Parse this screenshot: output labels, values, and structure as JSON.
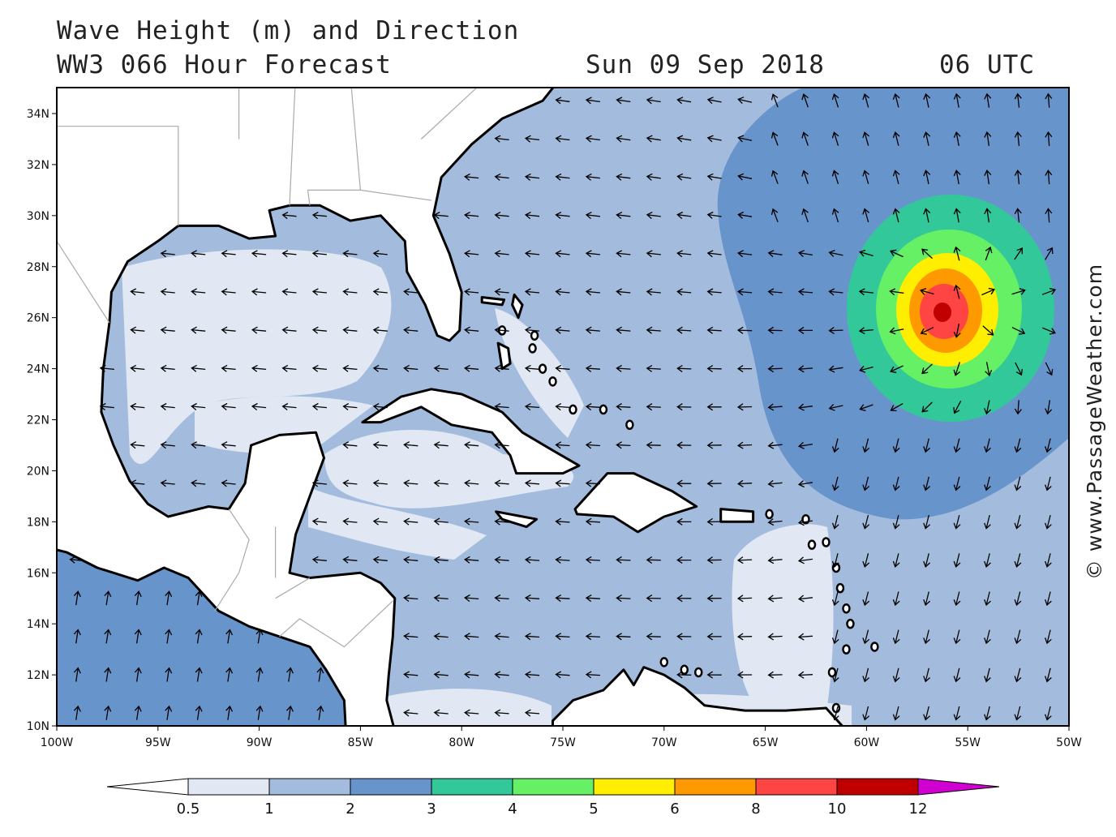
{
  "header": {
    "title": "Wave Height (m) and Direction",
    "subtitle": "WW3 066 Hour Forecast",
    "date": "Sun 09 Sep 2018",
    "time": "06 UTC"
  },
  "axes": {
    "lat_labels": [
      "34N",
      "32N",
      "30N",
      "28N",
      "26N",
      "24N",
      "22N",
      "20N",
      "18N",
      "16N",
      "14N",
      "12N",
      "10N"
    ],
    "lon_labels": [
      "100W",
      "95W",
      "90W",
      "85W",
      "80W",
      "75W",
      "70W",
      "65W",
      "60W",
      "55W",
      "50W"
    ]
  },
  "colorbar": {
    "labels": [
      "0.5",
      "1",
      "2",
      "3",
      "4",
      "5",
      "6",
      "8",
      "10",
      "12"
    ],
    "colors": [
      "#ffffff",
      "#e1e8f4",
      "#a3bcdd",
      "#6894cc",
      "#33c89a",
      "#66f066",
      "#ffee00",
      "#ff9900",
      "#ff4444",
      "#c00000",
      "#d000d0"
    ]
  },
  "watermark": "© www.PassageWeather.com"
}
